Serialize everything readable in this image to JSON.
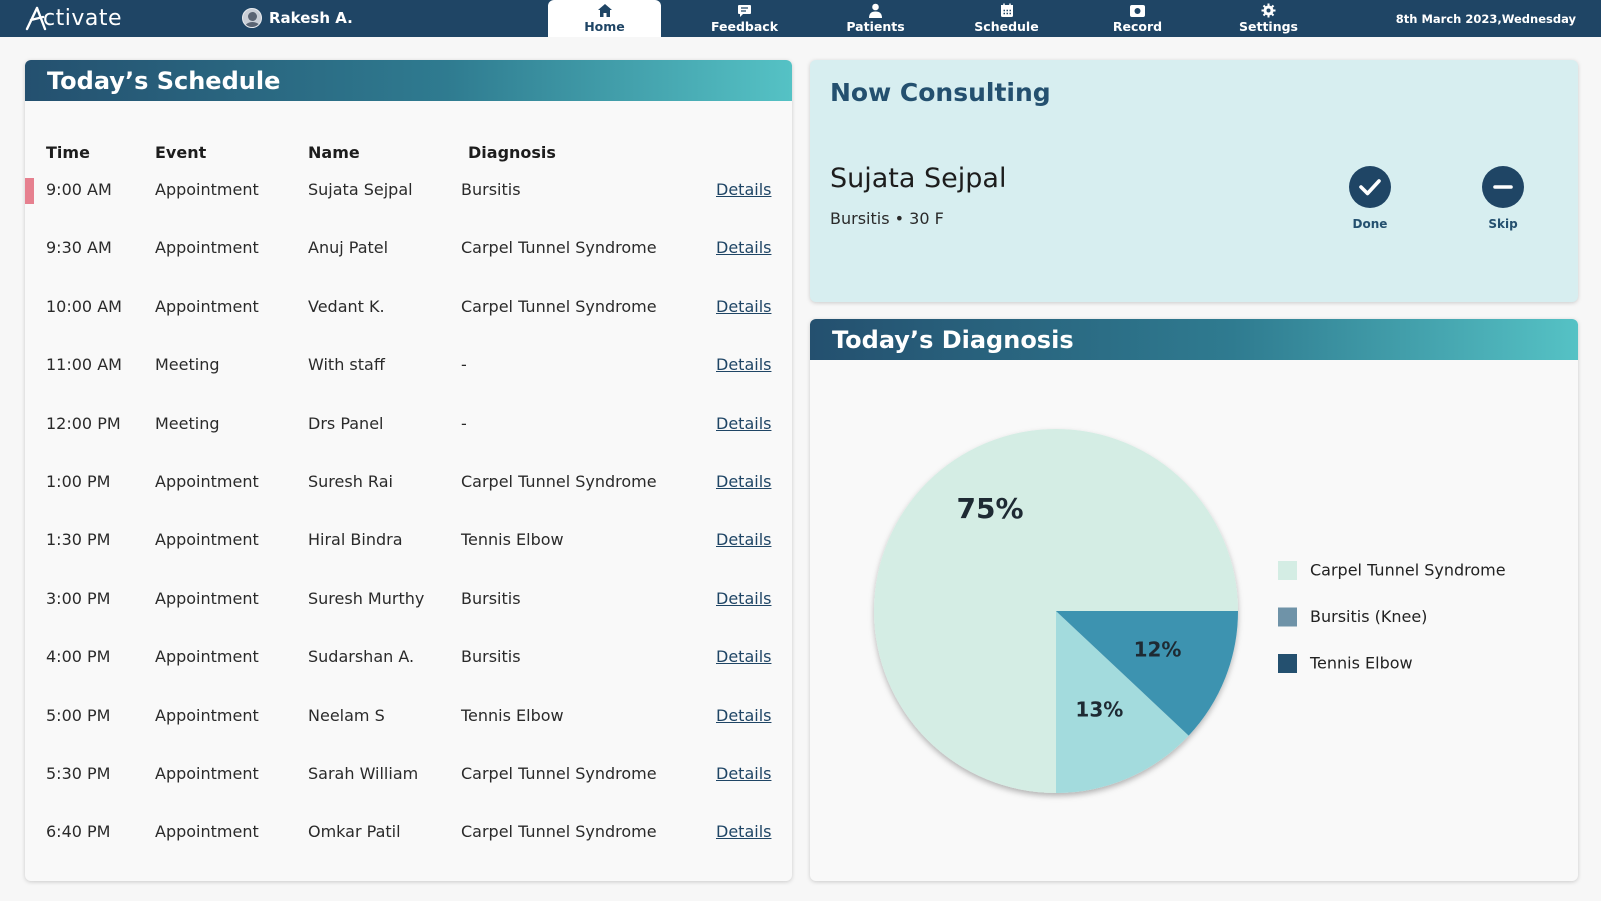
{
  "app": {
    "logo_text": "ctivate",
    "user_name": "Rakesh A.",
    "date": "8th March 2023,Wednesday"
  },
  "nav": [
    {
      "label": "Home",
      "icon": "home-icon",
      "active": true
    },
    {
      "label": "Feedback",
      "icon": "feedback-icon"
    },
    {
      "label": "Patients",
      "icon": "patient-icon"
    },
    {
      "label": "Schedule",
      "icon": "calendar-icon"
    },
    {
      "label": "Record",
      "icon": "record-icon"
    },
    {
      "label": "Settings",
      "icon": "gear-icon"
    }
  ],
  "schedule": {
    "title": "Today’s Schedule",
    "columns": {
      "time": "Time",
      "event": "Event",
      "name": "Name",
      "diagnosis": "Diagnosis"
    },
    "details_label": "Details",
    "rows": [
      {
        "time": "9:00 AM",
        "event": "Appointment",
        "name": "Sujata Sejpal",
        "diagnosis": "Bursitis",
        "current": true
      },
      {
        "time": "9:30 AM",
        "event": "Appointment",
        "name": "Anuj Patel",
        "diagnosis": "Carpel Tunnel Syndrome"
      },
      {
        "time": "10:00 AM",
        "event": "Appointment",
        "name": "Vedant K.",
        "diagnosis": "Carpel Tunnel Syndrome"
      },
      {
        "time": "11:00 AM",
        "event": "Meeting",
        "name": "With staff",
        "diagnosis": "-"
      },
      {
        "time": "12:00 PM",
        "event": "Meeting",
        "name": "Drs Panel",
        "diagnosis": "-"
      },
      {
        "time": "1:00 PM",
        "event": "Appointment",
        "name": "Suresh Rai",
        "diagnosis": "Carpel Tunnel Syndrome"
      },
      {
        "time": "1:30 PM",
        "event": "Appointment",
        "name": "Hiral Bindra",
        "diagnosis": "Tennis Elbow"
      },
      {
        "time": "3:00 PM",
        "event": "Appointment",
        "name": "Suresh Murthy",
        "diagnosis": "Bursitis"
      },
      {
        "time": "4:00 PM",
        "event": "Appointment",
        "name": "Sudarshan A.",
        "diagnosis": "Bursitis"
      },
      {
        "time": "5:00 PM",
        "event": "Appointment",
        "name": "Neelam S",
        "diagnosis": "Tennis Elbow"
      },
      {
        "time": "5:30 PM",
        "event": "Appointment",
        "name": "Sarah William",
        "diagnosis": "Carpel Tunnel Syndrome"
      },
      {
        "time": "6:40 PM",
        "event": "Appointment",
        "name": "Omkar Patil",
        "diagnosis": "Carpel Tunnel Syndrome"
      }
    ]
  },
  "consulting": {
    "title": "Now Consulting",
    "patient_name": "Sujata Sejpal",
    "diagnosis": "Bursitis",
    "age_sex": "30 F",
    "done_label": "Done",
    "skip_label": "Skip"
  },
  "diagnosis_panel": {
    "title": "Today’s Diagnosis"
  },
  "chart_data": {
    "type": "pie",
    "title": "Today’s Diagnosis",
    "slices": [
      {
        "label": "Carpel Tunnel Syndrome",
        "value": 75,
        "value_label": "75%",
        "color": "#d4ede4"
      },
      {
        "label": "Bursitis (Knee)",
        "value": 13,
        "value_label": "13%",
        "color": "#a3dbdd"
      },
      {
        "label": "Tennis Elbow",
        "value": 12,
        "value_label": "12%",
        "color": "#3e93b0"
      }
    ],
    "legend": [
      {
        "label": "Carpel Tunnel Syndrome",
        "color": "#d4ede4"
      },
      {
        "label": "Bursitis (Knee)",
        "color": "#6f93a8"
      },
      {
        "label": "Tennis Elbow",
        "color": "#24506f"
      }
    ],
    "legend_position": "right"
  }
}
